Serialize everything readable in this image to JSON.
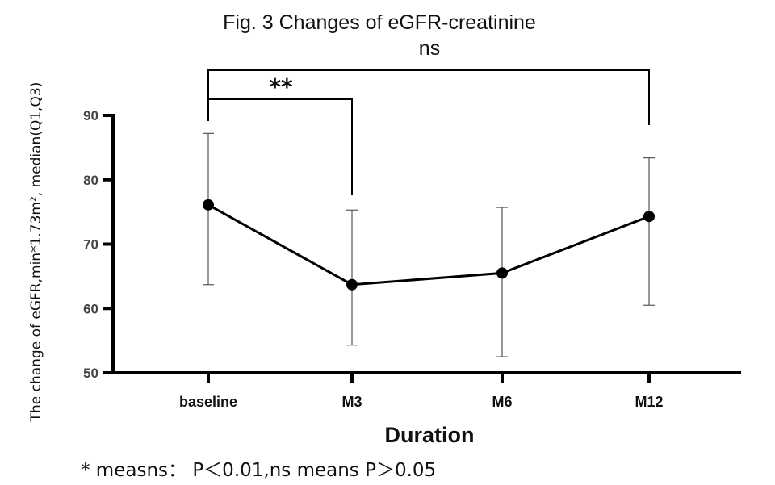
{
  "chart_data": {
    "type": "line",
    "title": "Fig. 3 Changes of eGFR-creatinine",
    "xlabel": "Duration",
    "ylabel": "The change of eGFR,min*1.73m², median(Q1,Q3)",
    "categories": [
      "baseline",
      "M3",
      "M6",
      "M12"
    ],
    "series": [
      {
        "name": "median",
        "values": [
          76.1,
          63.7,
          65.5,
          74.3
        ],
        "q1": [
          63.7,
          54.3,
          52.5,
          60.5
        ],
        "q3": [
          87.2,
          75.3,
          75.7,
          83.4
        ]
      }
    ],
    "ylim": [
      50,
      90
    ],
    "yticks": [
      50,
      60,
      70,
      80,
      90
    ],
    "grid": false,
    "annotations": [
      {
        "label": "**",
        "from": "baseline",
        "to": "M3"
      },
      {
        "label": "ns",
        "from": "baseline",
        "to": "M12"
      }
    ],
    "footnote": "* measns： P＜0.01,ns means P＞0.05"
  }
}
